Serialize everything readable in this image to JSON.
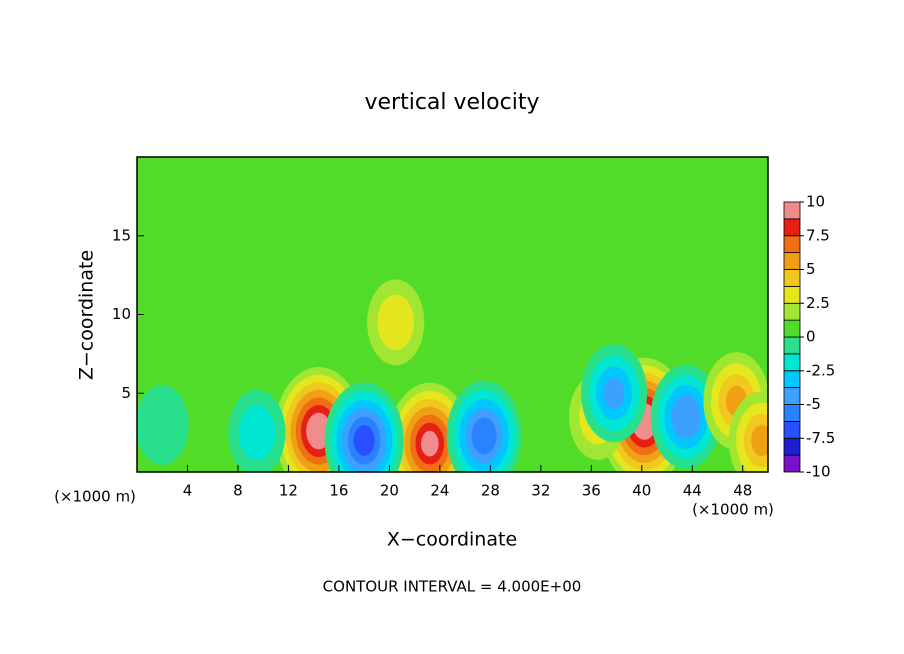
{
  "chart_data": {
    "type": "contour",
    "title": "vertical velocity",
    "x_label": "X−coordinate",
    "y_label": "Z−coordinate",
    "x_unit_left": "(×1000 m)",
    "x_unit_right": "(×1000 m)",
    "footer": "CONTOUR INTERVAL = 4.000E+00",
    "xlim": [
      0,
      50
    ],
    "xticks": [
      4,
      8,
      12,
      16,
      20,
      24,
      28,
      32,
      36,
      40,
      44,
      48
    ],
    "ylim": [
      0,
      20
    ],
    "yticks": [
      5,
      10,
      15
    ],
    "colorbar": {
      "levels": [
        -10,
        -8.75,
        -7.5,
        -6.25,
        -5,
        -3.75,
        -2.5,
        -1.25,
        0,
        1.25,
        2.5,
        3.75,
        5,
        6.25,
        7.5,
        8.75,
        10
      ],
      "colors": [
        "#7a10c8",
        "#1e1ed2",
        "#2850ff",
        "#2a82ff",
        "#3ca0ff",
        "#00c8ff",
        "#00e6d2",
        "#28e08c",
        "#50dc28",
        "#a0e632",
        "#e6e61e",
        "#f0c81e",
        "#f0a014",
        "#f06e14",
        "#e61e14",
        "#f08c8c"
      ],
      "ticks": [
        10,
        7.5,
        5,
        2.5,
        0,
        -2.5,
        -5,
        -7.5,
        -10
      ]
    },
    "features": [
      {
        "x": 14.4,
        "z": 2.6,
        "value": 10
      },
      {
        "x": 23.2,
        "z": 1.8,
        "value": 9
      },
      {
        "x": 40.2,
        "z": 3.2,
        "value": 10
      },
      {
        "x": 18.0,
        "z": 2.0,
        "value": -8
      },
      {
        "x": 27.5,
        "z": 2.3,
        "value": -7
      },
      {
        "x": 43.5,
        "z": 3.5,
        "value": -6
      },
      {
        "x": 47.5,
        "z": 4.5,
        "value": 5
      },
      {
        "x": 49.5,
        "z": 2.0,
        "value": 5
      },
      {
        "x": 20.5,
        "z": 9.5,
        "value": 3
      },
      {
        "x": 36.5,
        "z": 3.5,
        "value": 3
      },
      {
        "x": 9.5,
        "z": 2.5,
        "value": -3
      },
      {
        "x": 2.0,
        "z": 3.0,
        "value": -2
      },
      {
        "x": 37.8,
        "z": 5.0,
        "value": -5
      }
    ]
  }
}
